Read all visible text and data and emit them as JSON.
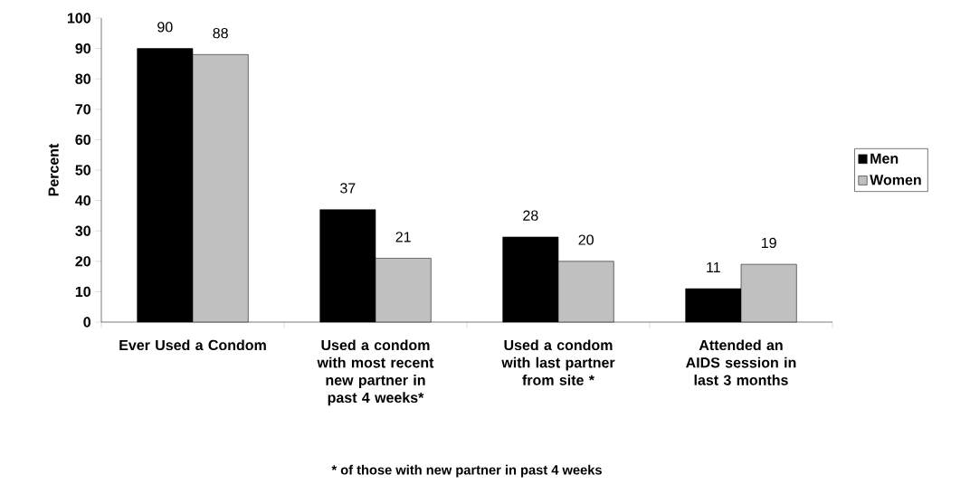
{
  "chart_data": {
    "type": "bar",
    "ylabel": "Percent",
    "categories": [
      "Ever Used a Condom",
      "Used a condom with most recent new partner in past 4 weeks*",
      "Used a condom with last partner from site *",
      "Attended an AIDS session in last 3 months"
    ],
    "series": [
      {
        "name": "Men",
        "color": "#000000",
        "values": [
          90,
          37,
          28,
          11
        ]
      },
      {
        "name": "Women",
        "color": "#c0c0c0",
        "values": [
          88,
          21,
          20,
          19
        ]
      }
    ],
    "ylim": [
      0,
      100
    ],
    "yticks": [
      0,
      10,
      20,
      30,
      40,
      50,
      60,
      70,
      80,
      90,
      100
    ],
    "data_labels": true,
    "legend": "right",
    "grid": false,
    "annotations": [
      "* of those with new partner in past 4 weeks"
    ]
  }
}
